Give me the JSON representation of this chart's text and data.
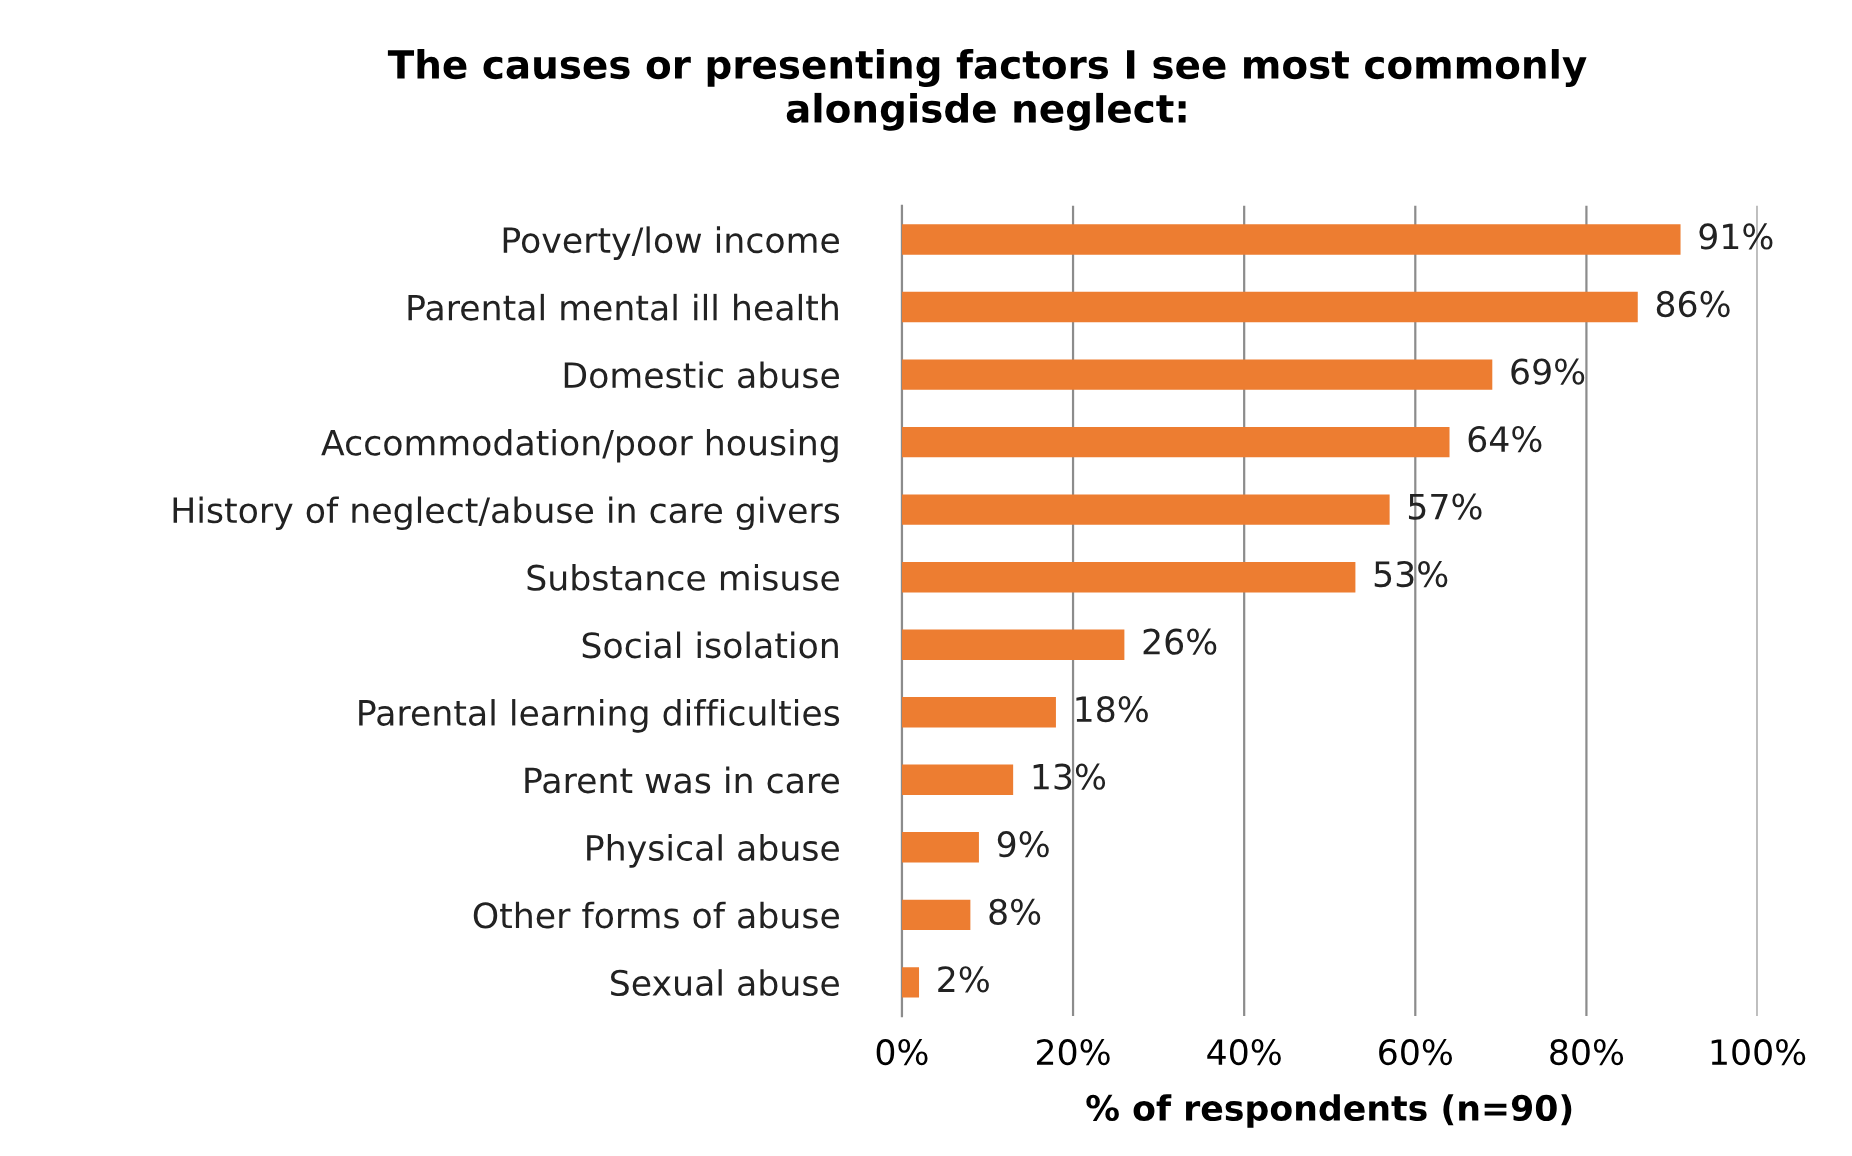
{
  "chart_data": {
    "type": "bar",
    "orientation": "horizontal",
    "title": "The causes or presenting factors I see most commonly\nalongisde neglect:",
    "xlabel": "% of respondents (n=90)",
    "categories": [
      "Poverty/low income",
      "Parental mental ill health",
      "Domestic abuse",
      "Accommodation/poor housing",
      "History of neglect/abuse in care givers",
      "Substance misuse",
      "Social isolation",
      "Parental learning difficulties",
      "Parent was in care",
      "Physical abuse",
      "Other forms of abuse",
      "Sexual abuse"
    ],
    "values": [
      91,
      86,
      69,
      64,
      57,
      53,
      26,
      18,
      13,
      9,
      8,
      2
    ],
    "value_labels": [
      "91%",
      "86%",
      "69%",
      "64%",
      "57%",
      "53%",
      "26%",
      "18%",
      "13%",
      "9%",
      "8%",
      "2%"
    ],
    "color": "#ed7d31",
    "xlim": [
      0,
      100
    ],
    "xticks": [
      {
        "value": 0,
        "label": "0%"
      },
      {
        "value": 20,
        "label": "20%"
      },
      {
        "value": 40,
        "label": "40%"
      },
      {
        "value": 60,
        "label": "60%"
      },
      {
        "value": 80,
        "label": "80%"
      },
      {
        "value": 100,
        "label": "100%"
      }
    ],
    "grid": "x"
  }
}
